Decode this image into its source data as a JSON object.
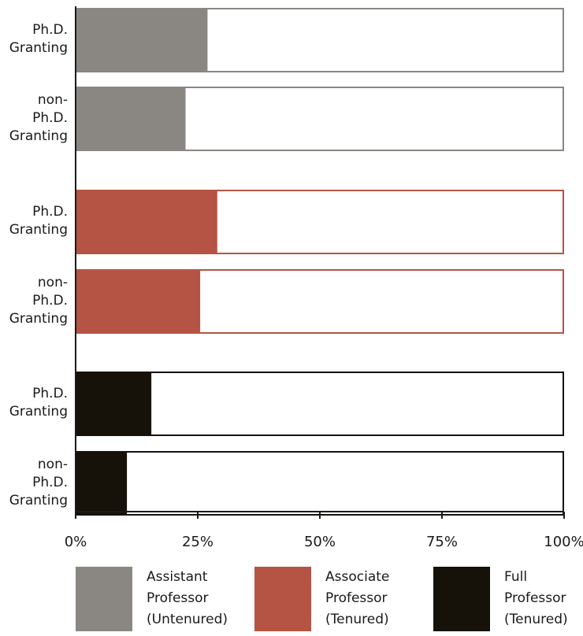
{
  "chart_data": {
    "type": "bar",
    "orientation": "horizontal",
    "xlim": [
      0,
      100
    ],
    "xticks": [
      "0%",
      "25%",
      "50%",
      "75%",
      "100%"
    ],
    "groups": [
      {
        "series": "Assistant Professor (Untenured)",
        "color": "#8a8782",
        "bars": [
          {
            "label": "Ph.D. Granting",
            "value": 27
          },
          {
            "label": "non-Ph.D. Granting",
            "value": 22.5
          }
        ]
      },
      {
        "series": "Associate Professor (Tenured)",
        "color": "#b55444",
        "bars": [
          {
            "label": "Ph.D. Granting",
            "value": 29
          },
          {
            "label": "non-Ph.D. Granting",
            "value": 25.5
          }
        ]
      },
      {
        "series": "Full Professor (Tenured)",
        "color": "#16120a",
        "bars": [
          {
            "label": "Ph.D. Granting",
            "value": 15.5
          },
          {
            "label": "non-Ph.D. Granting",
            "value": 10.5
          }
        ]
      }
    ],
    "legend": [
      {
        "lines": [
          "Assistant",
          "Professor",
          "(Untenured)"
        ],
        "color": "#8a8782"
      },
      {
        "lines": [
          "Associate",
          "Professor",
          "(Tenured)"
        ],
        "color": "#b55444"
      },
      {
        "lines": [
          "Full",
          "Professor",
          "(Tenured)"
        ],
        "color": "#16120a"
      }
    ],
    "legend_placement": "bottom",
    "grid": false
  },
  "labels": {
    "phd": [
      "Ph.D.",
      "Granting"
    ],
    "nonphd": [
      "non-",
      "Ph.D.",
      "Granting"
    ]
  }
}
